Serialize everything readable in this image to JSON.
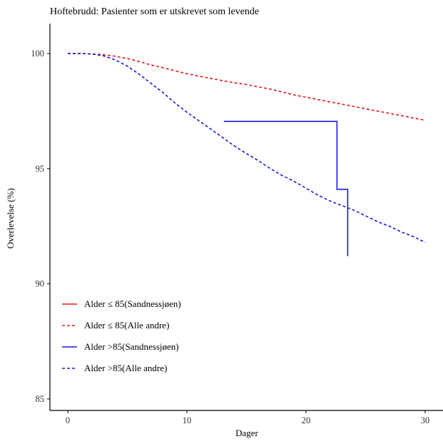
{
  "chart_data": {
    "type": "line",
    "title": "Hoftebrudd: Pasienter som er utskrevet som levende",
    "xlabel": "Dager",
    "ylabel": "Overlevelse (%)",
    "xlim": [
      -1.5,
      31.5
    ],
    "ylim": [
      84.5,
      101.3
    ],
    "xticks": [
      0,
      10,
      20,
      30
    ],
    "yticks": [
      85,
      90,
      95,
      100
    ],
    "grid": false,
    "legend_position": "bottom-left",
    "series": [
      {
        "name": "Alder ≤ 85(Sandnessjøen)",
        "color": "#e41a1c",
        "dash": "solid",
        "step": false,
        "x": [],
        "y": []
      },
      {
        "name": "Alder ≤ 85(Alle andre)",
        "color": "#e41a1c",
        "dash": "dashed",
        "step": false,
        "x": [
          0,
          1,
          2,
          3,
          4,
          5,
          6,
          7,
          8,
          9,
          10,
          11,
          12,
          13,
          14,
          15,
          16,
          17,
          18,
          19,
          20,
          21,
          22,
          23,
          24,
          25,
          26,
          27,
          28,
          29,
          30
        ],
        "y": [
          100,
          100,
          99.98,
          99.95,
          99.88,
          99.78,
          99.65,
          99.5,
          99.38,
          99.25,
          99.12,
          99.02,
          98.92,
          98.82,
          98.73,
          98.65,
          98.55,
          98.45,
          98.33,
          98.2,
          98.1,
          98.0,
          97.9,
          97.8,
          97.7,
          97.6,
          97.5,
          97.4,
          97.3,
          97.2,
          97.1
        ]
      },
      {
        "name": "Alder >85(Sandnessjøen)",
        "color": "#1a1adb",
        "dash": "solid",
        "step": true,
        "x": [
          13.1,
          22.6,
          22.6,
          23.5,
          23.5
        ],
        "y": [
          97.05,
          97.05,
          94.1,
          94.1,
          91.2
        ]
      },
      {
        "name": "Alder >85(Alle andre)",
        "color": "#1a1adb",
        "dash": "dashed",
        "step": false,
        "x": [
          0,
          1,
          2,
          3,
          4,
          5,
          6,
          7,
          8,
          9,
          10,
          11,
          12,
          13,
          14,
          15,
          16,
          17,
          18,
          19,
          20,
          21,
          22,
          23,
          24,
          25,
          26,
          27,
          28,
          29,
          30
        ],
        "y": [
          100,
          100,
          99.98,
          99.9,
          99.72,
          99.45,
          99.1,
          98.7,
          98.3,
          97.85,
          97.45,
          97.08,
          96.72,
          96.35,
          95.98,
          95.65,
          95.35,
          95.0,
          94.7,
          94.45,
          94.15,
          93.85,
          93.6,
          93.4,
          93.2,
          92.95,
          92.7,
          92.5,
          92.25,
          92.05,
          91.8
        ]
      }
    ]
  }
}
